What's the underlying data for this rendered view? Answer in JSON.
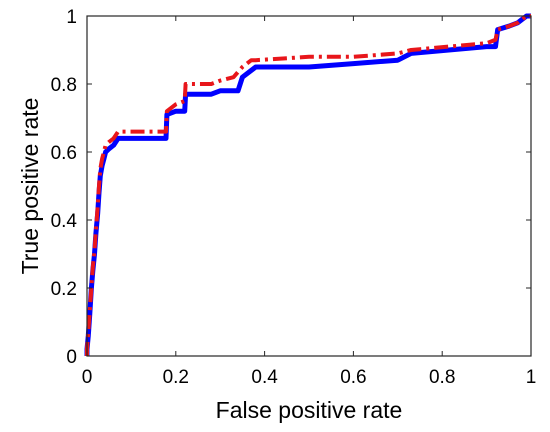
{
  "chart_data": {
    "type": "line",
    "xlabel": "False positive rate",
    "ylabel": "True positive rate",
    "xlim": [
      0,
      1
    ],
    "ylim": [
      0,
      1
    ],
    "grid": false,
    "x_ticks": [
      0,
      0.2,
      0.4,
      0.6,
      0.8,
      1
    ],
    "y_ticks": [
      0,
      0.2,
      0.4,
      0.6,
      0.8,
      1
    ],
    "x_tick_labels": [
      "0",
      "0.2",
      "0.4",
      "0.6",
      "0.8",
      "1"
    ],
    "y_tick_labels": [
      "0",
      "0.2",
      "0.4",
      "0.6",
      "0.8",
      "1"
    ],
    "series": [
      {
        "color": "#0000ff",
        "style": "solid",
        "points": [
          [
            0,
            0
          ],
          [
            0,
            0.02
          ],
          [
            0.003,
            0.06
          ],
          [
            0.006,
            0.12
          ],
          [
            0.01,
            0.2
          ],
          [
            0.013,
            0.25
          ],
          [
            0.017,
            0.3
          ],
          [
            0.02,
            0.36
          ],
          [
            0.024,
            0.42
          ],
          [
            0.027,
            0.48
          ],
          [
            0.03,
            0.53
          ],
          [
            0.034,
            0.56
          ],
          [
            0.038,
            0.58
          ],
          [
            0.042,
            0.6
          ],
          [
            0.05,
            0.61
          ],
          [
            0.06,
            0.62
          ],
          [
            0.07,
            0.64
          ],
          [
            0.1,
            0.64
          ],
          [
            0.14,
            0.64
          ],
          [
            0.178,
            0.64
          ],
          [
            0.18,
            0.71
          ],
          [
            0.2,
            0.72
          ],
          [
            0.22,
            0.72
          ],
          [
            0.222,
            0.77
          ],
          [
            0.28,
            0.77
          ],
          [
            0.3,
            0.78
          ],
          [
            0.34,
            0.78
          ],
          [
            0.35,
            0.82
          ],
          [
            0.37,
            0.84
          ],
          [
            0.38,
            0.85
          ],
          [
            0.5,
            0.85
          ],
          [
            0.6,
            0.86
          ],
          [
            0.7,
            0.87
          ],
          [
            0.73,
            0.89
          ],
          [
            0.9,
            0.91
          ],
          [
            0.92,
            0.91
          ],
          [
            0.925,
            0.96
          ],
          [
            0.95,
            0.97
          ],
          [
            0.97,
            0.98
          ],
          [
            0.98,
            0.99
          ],
          [
            0.99,
            1.0
          ],
          [
            1.0,
            1.0
          ]
        ]
      },
      {
        "color": "#e8161b",
        "style": "dashdot",
        "points": [
          [
            0,
            0
          ],
          [
            0,
            0.02
          ],
          [
            0.003,
            0.07
          ],
          [
            0.006,
            0.13
          ],
          [
            0.01,
            0.2
          ],
          [
            0.013,
            0.26
          ],
          [
            0.017,
            0.31
          ],
          [
            0.02,
            0.37
          ],
          [
            0.024,
            0.44
          ],
          [
            0.027,
            0.5
          ],
          [
            0.03,
            0.55
          ],
          [
            0.034,
            0.58
          ],
          [
            0.038,
            0.6
          ],
          [
            0.042,
            0.62
          ],
          [
            0.05,
            0.63
          ],
          [
            0.06,
            0.64
          ],
          [
            0.07,
            0.66
          ],
          [
            0.1,
            0.66
          ],
          [
            0.14,
            0.66
          ],
          [
            0.178,
            0.66
          ],
          [
            0.18,
            0.72
          ],
          [
            0.2,
            0.74
          ],
          [
            0.22,
            0.75
          ],
          [
            0.222,
            0.8
          ],
          [
            0.28,
            0.8
          ],
          [
            0.3,
            0.81
          ],
          [
            0.33,
            0.82
          ],
          [
            0.35,
            0.85
          ],
          [
            0.37,
            0.87
          ],
          [
            0.38,
            0.87
          ],
          [
            0.5,
            0.88
          ],
          [
            0.6,
            0.88
          ],
          [
            0.7,
            0.89
          ],
          [
            0.73,
            0.9
          ],
          [
            0.9,
            0.92
          ],
          [
            0.92,
            0.93
          ],
          [
            0.925,
            0.96
          ],
          [
            0.95,
            0.97
          ],
          [
            0.97,
            0.98
          ],
          [
            0.98,
            0.99
          ],
          [
            0.99,
            1.0
          ],
          [
            1.0,
            1.0
          ]
        ]
      }
    ]
  }
}
